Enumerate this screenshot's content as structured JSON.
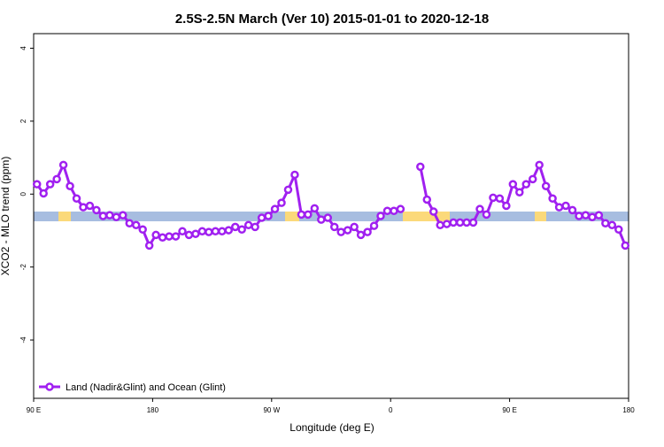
{
  "chart_data": {
    "type": "line",
    "title": "2.5S-2.5N March (Ver 10)   2015-01-01 to 2020-12-18",
    "x_label": "Longitude (deg E)",
    "y_label": "XCO2 - MLO trend (ppm)",
    "xlim": [
      90,
      540
    ],
    "ylim": [
      -5.6,
      4.4
    ],
    "xticks": [
      {
        "value": 90,
        "label": "90 E"
      },
      180,
      {
        "value": 270,
        "label": "90 W"
      },
      {
        "value": 360,
        "label": "0"
      },
      {
        "value": 450,
        "label": "90 E"
      },
      {
        "value": 540,
        "label": "180"
      }
    ],
    "yticks": [
      4,
      2,
      0,
      -2,
      -4
    ],
    "legend": "bottom-left",
    "x": [
      92.5,
      97.5,
      102.5,
      107.5,
      112.5,
      117.5,
      122.5,
      127.5,
      132.5,
      137.5,
      142.5,
      147.5,
      152.5,
      157.5,
      162.5,
      167.5,
      172.5,
      177.5,
      182.5,
      187.5,
      192.5,
      197.5,
      202.5,
      207.5,
      212.5,
      217.5,
      222.5,
      227.5,
      232.5,
      237.5,
      242.5,
      247.5,
      252.5,
      257.5,
      262.5,
      267.5,
      272.5,
      277.5,
      282.5,
      287.5,
      292.5,
      297.5,
      302.5,
      307.5,
      312.5,
      317.5,
      322.5,
      327.5,
      332.5,
      337.5,
      342.5,
      347.5,
      352.5,
      357.5,
      362.5,
      367.5,
      372.5,
      377.5,
      382.5,
      387.5,
      392.5,
      397.5,
      402.5,
      407.5,
      412.5,
      417.5,
      422.5,
      427.5,
      432.5,
      437.5,
      442.5,
      447.5,
      452.5,
      457.5,
      462.5,
      467.5,
      472.5,
      477.5,
      482.5,
      487.5,
      492.5,
      497.5,
      502.5,
      507.5,
      512.5,
      517.5,
      522.5,
      527.5,
      532.5,
      537.5
    ],
    "series": [
      {
        "name": "Land (Nadir&Glint) and Ocean (Glint)",
        "color": "#a020f0",
        "values": [
          0.27,
          0.02,
          0.27,
          0.41,
          0.8,
          0.22,
          -0.12,
          -0.36,
          -0.32,
          -0.44,
          -0.6,
          -0.58,
          -0.63,
          -0.58,
          -0.8,
          -0.85,
          -0.97,
          -1.41,
          -1.12,
          -1.19,
          -1.16,
          -1.16,
          -1.02,
          -1.12,
          -1.09,
          -1.02,
          -1.04,
          -1.02,
          -1.02,
          -0.99,
          -0.9,
          -0.97,
          -0.85,
          -0.9,
          -0.65,
          -0.6,
          -0.41,
          -0.24,
          0.12,
          0.53,
          -0.56,
          -0.56,
          -0.39,
          -0.7,
          -0.65,
          -0.9,
          -1.04,
          -0.99,
          -0.9,
          -1.12,
          -1.04,
          -0.87,
          -0.6,
          -0.46,
          -0.46,
          -0.41,
          null,
          null,
          0.75,
          -0.15,
          -0.48,
          -0.85,
          -0.82,
          -0.78,
          -0.78,
          -0.78,
          -0.78,
          -0.41,
          -0.56,
          -0.1,
          -0.12,
          -0.32,
          0.27,
          0.05,
          0.27,
          0.41,
          0.8,
          0.22,
          -0.12,
          -0.36,
          -0.32,
          -0.44,
          -0.6,
          -0.58,
          -0.63,
          -0.58,
          -0.8,
          -0.85,
          -0.97,
          -1.41
        ]
      }
    ]
  }
}
